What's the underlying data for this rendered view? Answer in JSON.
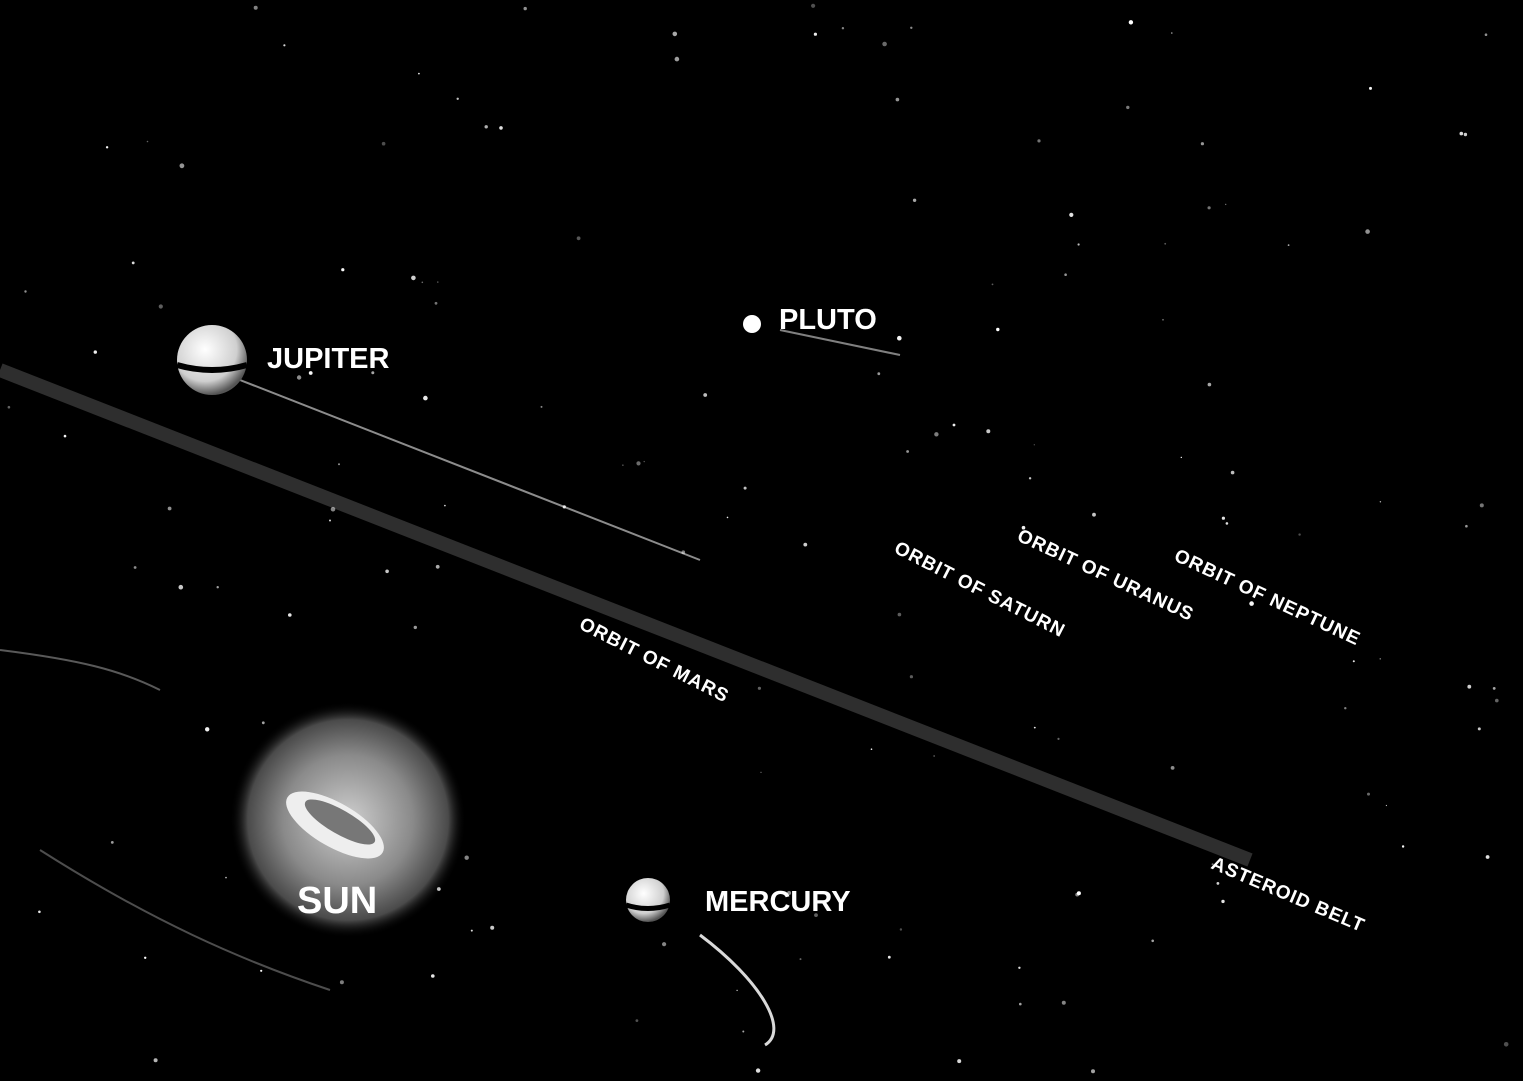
{
  "labels": {
    "jupiter": "JUPITER",
    "pluto": "PLUTO",
    "orbit_uranus": "ORBIT OF URANUS",
    "orbit_neptune": "ORBIT OF NEPTUNE",
    "orbit_saturn": "ORBIT OF SATURN",
    "orbit_mars": "ORBIT OF MARS",
    "sun": "SUN",
    "mercury": "MERCURY",
    "asteroid_belt": "ASTEROID BELT"
  }
}
